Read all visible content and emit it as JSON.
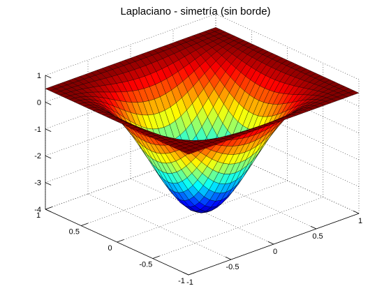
{
  "chart_data": {
    "type": "surface",
    "title": "Laplaciano - simetría (sin borde)",
    "xlabel": "",
    "ylabel": "",
    "zlabel": "",
    "xlim": [
      -1,
      1
    ],
    "ylim": [
      -1,
      1
    ],
    "zlim": [
      -4,
      1
    ],
    "x_ticks": [
      "-1",
      "-0.5",
      "0",
      "0.5",
      "1"
    ],
    "y_ticks": [
      "-1",
      "-0.5",
      "0",
      "0.5",
      "1"
    ],
    "z_ticks": [
      "-4",
      "-3",
      "-2",
      "-1",
      "0",
      "1"
    ],
    "grid": true,
    "colormap": "jet",
    "surface": {
      "grid_size": 31,
      "min_value": -4,
      "min_at": [
        0,
        0
      ],
      "corner_value": 0.5,
      "edge_mid_value": 0.5
    },
    "colors": {
      "background": "#ffffff",
      "axes": "#000000"
    }
  }
}
